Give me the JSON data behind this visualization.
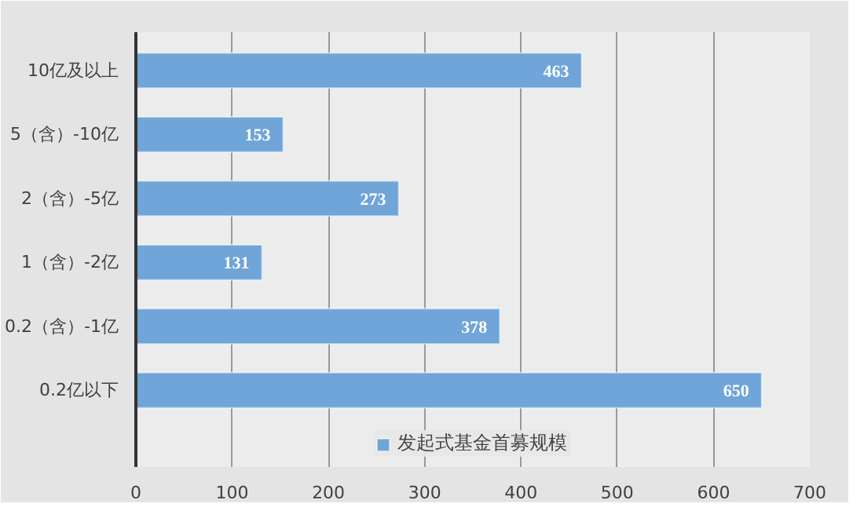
{
  "chart_data": {
    "type": "bar",
    "orientation": "horizontal",
    "categories": [
      "10亿及以上",
      "5（含）-10亿",
      "2（含）-5亿",
      "1（含）-2亿",
      "0.2（含）-1亿",
      "0.2亿以下"
    ],
    "series": [
      {
        "name": "发起式基金首募规模",
        "color": "#6fa5d8",
        "values": [
          463,
          153,
          273,
          131,
          378,
          650
        ]
      }
    ],
    "xlim": [
      0,
      700
    ],
    "xticks": [
      0,
      100,
      200,
      300,
      400,
      500,
      600,
      700
    ],
    "grid": "x",
    "legend": "bottom",
    "data_labels": true
  }
}
